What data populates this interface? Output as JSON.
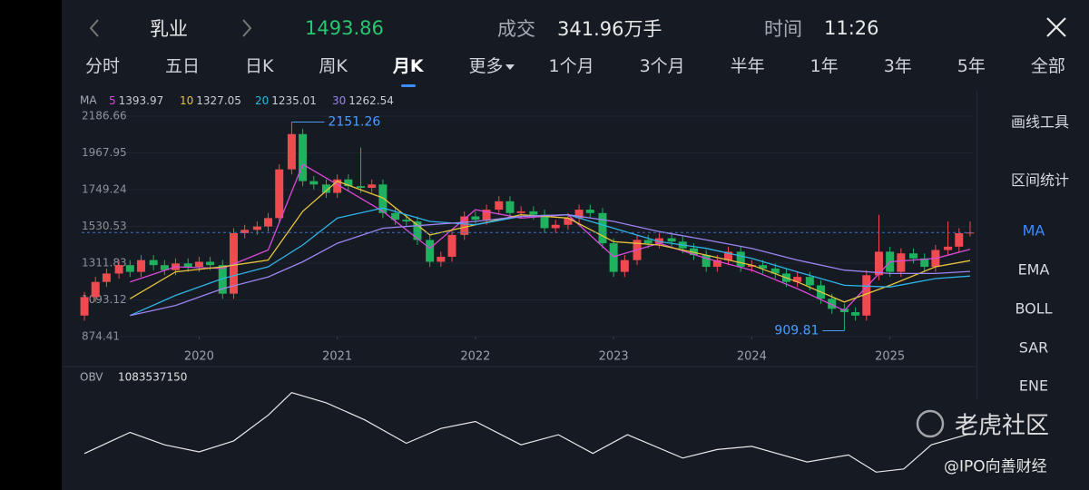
{
  "header": {
    "title": "乳业",
    "price": "1493.86",
    "volume_label": "成交",
    "volume": "341.96万手",
    "time_label": "时间",
    "time": "11:26"
  },
  "tabs": [
    "分时",
    "五日",
    "日K",
    "周K",
    "月K",
    "更多",
    "1个月",
    "3个月",
    "半年",
    "1年",
    "3年",
    "5年",
    "全部"
  ],
  "selected_tab": 4,
  "sidebar": {
    "tools": [
      "画线工具",
      "区间统计"
    ],
    "indicators": [
      "MA",
      "EMA",
      "BOLL",
      "SAR",
      "ENE"
    ],
    "selected": 0
  },
  "watermark": [
    "老虎社区",
    "@IPO向善财经"
  ],
  "chart_data": [
    {
      "type": "candlestick",
      "legend_title": "MA",
      "up_color": "#ef4a50",
      "down_color": "#20b15f",
      "xlim": [
        2019.15,
        2025.6
      ],
      "xticks": [
        2020,
        2021,
        2022,
        2023,
        2024,
        2025
      ],
      "ylim": [
        874.41,
        2186.66
      ],
      "yticks": [
        874.41,
        1093.12,
        1311.83,
        1530.53,
        1749.24,
        1967.95,
        2186.66
      ],
      "max_label": "2151.26",
      "min_label": "909.81",
      "x": [
        2019.17,
        2019.25,
        2019.33,
        2019.42,
        2019.5,
        2019.58,
        2019.67,
        2019.75,
        2019.83,
        2019.92,
        2020.0,
        2020.08,
        2020.17,
        2020.25,
        2020.33,
        2020.42,
        2020.5,
        2020.58,
        2020.67,
        2020.75,
        2020.83,
        2020.92,
        2021.0,
        2021.08,
        2021.17,
        2021.25,
        2021.33,
        2021.42,
        2021.5,
        2021.58,
        2021.67,
        2021.75,
        2021.83,
        2021.92,
        2022.0,
        2022.08,
        2022.17,
        2022.25,
        2022.33,
        2022.42,
        2022.5,
        2022.58,
        2022.67,
        2022.75,
        2022.83,
        2022.92,
        2023.0,
        2023.08,
        2023.17,
        2023.25,
        2023.33,
        2023.42,
        2023.5,
        2023.58,
        2023.67,
        2023.75,
        2023.83,
        2023.92,
        2024.0,
        2024.08,
        2024.17,
        2024.25,
        2024.33,
        2024.42,
        2024.5,
        2024.58,
        2024.67,
        2024.75,
        2024.83,
        2024.92,
        2025.0,
        2025.08,
        2025.17,
        2025.25,
        2025.33,
        2025.42,
        2025.5,
        2025.58
      ],
      "open": [
        1000,
        1110,
        1200,
        1250,
        1300,
        1260,
        1330,
        1300,
        1270,
        1310,
        1290,
        1320,
        1300,
        1130,
        1490,
        1510,
        1530,
        1580,
        1870,
        2080,
        1800,
        1780,
        1730,
        1810,
        1770,
        1760,
        1780,
        1610,
        1570,
        1560,
        1450,
        1320,
        1350,
        1480,
        1590,
        1570,
        1630,
        1680,
        1610,
        1620,
        1600,
        1520,
        1540,
        1580,
        1630,
        1610,
        1430,
        1260,
        1330,
        1450,
        1430,
        1460,
        1440,
        1400,
        1360,
        1290,
        1330,
        1380,
        1290,
        1300,
        1280,
        1250,
        1200,
        1230,
        1180,
        1100,
        1040,
        1020,
        1000,
        1240,
        1380,
        1260,
        1370,
        1340,
        1290,
        1390,
        1410,
        1490
      ],
      "high": [
        1140,
        1230,
        1280,
        1330,
        1330,
        1360,
        1360,
        1330,
        1340,
        1340,
        1350,
        1350,
        1330,
        1520,
        1540,
        1560,
        1610,
        1900,
        2151.26,
        2110,
        1830,
        1810,
        1840,
        1840,
        2000,
        1810,
        1810,
        1640,
        1600,
        1590,
        1480,
        1380,
        1510,
        1620,
        1620,
        1660,
        1710,
        1710,
        1650,
        1650,
        1630,
        1570,
        1610,
        1660,
        1660,
        1640,
        1460,
        1360,
        1480,
        1480,
        1490,
        1490,
        1470,
        1430,
        1390,
        1360,
        1410,
        1410,
        1330,
        1330,
        1310,
        1280,
        1260,
        1260,
        1210,
        1130,
        1070,
        1050,
        1270,
        1600,
        1410,
        1400,
        1400,
        1370,
        1420,
        1560,
        1520,
        1560
      ],
      "low": [
        970,
        1080,
        1170,
        1220,
        1230,
        1230,
        1270,
        1240,
        1240,
        1260,
        1260,
        1270,
        1100,
        1100,
        1460,
        1480,
        1500,
        1550,
        1840,
        1770,
        1750,
        1700,
        1700,
        1740,
        1730,
        1730,
        1580,
        1540,
        1530,
        1420,
        1290,
        1290,
        1320,
        1450,
        1540,
        1540,
        1600,
        1580,
        1580,
        1570,
        1490,
        1490,
        1510,
        1550,
        1580,
        1400,
        1230,
        1230,
        1300,
        1400,
        1400,
        1410,
        1370,
        1330,
        1260,
        1260,
        1300,
        1260,
        1260,
        1250,
        1220,
        1170,
        1170,
        1150,
        1070,
        1010,
        909.81,
        970,
        970,
        1210,
        1230,
        1230,
        1310,
        1260,
        1260,
        1360,
        1380,
        1470
      ],
      "close": [
        1110,
        1200,
        1250,
        1300,
        1260,
        1330,
        1300,
        1270,
        1310,
        1290,
        1320,
        1300,
        1130,
        1490,
        1510,
        1530,
        1580,
        1870,
        2080,
        1800,
        1780,
        1730,
        1810,
        1770,
        1760,
        1780,
        1610,
        1570,
        1560,
        1450,
        1320,
        1350,
        1480,
        1590,
        1570,
        1630,
        1680,
        1610,
        1620,
        1600,
        1520,
        1540,
        1580,
        1630,
        1610,
        1430,
        1260,
        1330,
        1450,
        1430,
        1460,
        1440,
        1400,
        1360,
        1290,
        1330,
        1380,
        1290,
        1300,
        1280,
        1250,
        1200,
        1230,
        1180,
        1100,
        1040,
        1020,
        1000,
        1240,
        1380,
        1260,
        1370,
        1340,
        1290,
        1390,
        1410,
        1490,
        1493.86
      ],
      "series": [
        {
          "name": "5",
          "color": "#d84ad8",
          "x": [
            2019.5,
            2019.83,
            2020.17,
            2020.5,
            2020.75,
            2021.0,
            2021.33,
            2021.67,
            2022.0,
            2022.33,
            2022.67,
            2023.0,
            2023.33,
            2023.67,
            2024.0,
            2024.33,
            2024.67,
            2025.0,
            2025.33,
            2025.58
          ],
          "values": [
            1200,
            1290,
            1280,
            1390,
            1900,
            1780,
            1620,
            1400,
            1630,
            1580,
            1600,
            1350,
            1430,
            1340,
            1270,
            1160,
            1030,
            1320,
            1340,
            1393.97
          ]
        },
        {
          "name": "10",
          "color": "#e6c43c",
          "x": [
            2019.5,
            2019.83,
            2020.17,
            2020.5,
            2020.75,
            2021.0,
            2021.33,
            2021.67,
            2022.0,
            2022.33,
            2022.67,
            2023.0,
            2023.33,
            2023.67,
            2024.0,
            2024.33,
            2024.67,
            2025.0,
            2025.33,
            2025.58
          ],
          "values": [
            1100,
            1260,
            1290,
            1330,
            1620,
            1800,
            1700,
            1480,
            1540,
            1600,
            1580,
            1440,
            1420,
            1360,
            1300,
            1200,
            1080,
            1180,
            1290,
            1327.05
          ]
        },
        {
          "name": "20",
          "color": "#2fb4e8",
          "x": [
            2019.5,
            2019.83,
            2020.17,
            2020.5,
            2020.75,
            2021.0,
            2021.33,
            2021.67,
            2022.0,
            2022.33,
            2022.67,
            2023.0,
            2023.33,
            2023.67,
            2024.0,
            2024.33,
            2024.67,
            2025.0,
            2025.33,
            2025.58
          ],
          "values": [
            1000,
            1120,
            1220,
            1290,
            1420,
            1580,
            1640,
            1560,
            1540,
            1590,
            1600,
            1520,
            1440,
            1400,
            1340,
            1260,
            1180,
            1170,
            1220,
            1235.01
          ]
        },
        {
          "name": "30",
          "color": "#9c84f2",
          "x": [
            2019.5,
            2019.83,
            2020.17,
            2020.5,
            2020.75,
            2021.0,
            2021.33,
            2021.67,
            2022.0,
            2022.33,
            2022.67,
            2023.0,
            2023.33,
            2023.67,
            2024.0,
            2024.33,
            2024.67,
            2025.0,
            2025.33,
            2025.58
          ],
          "values": [
            1000,
            1060,
            1160,
            1230,
            1320,
            1430,
            1520,
            1540,
            1560,
            1590,
            1600,
            1560,
            1500,
            1450,
            1400,
            1330,
            1270,
            1250,
            1250,
            1262.54
          ]
        }
      ]
    },
    {
      "type": "line",
      "title": "OBV",
      "color": "#e8e8e8",
      "xlim": [
        2019.15,
        2025.6
      ],
      "ylim": [
        500000000,
        1700000000
      ],
      "x": [
        2019.17,
        2019.5,
        2019.75,
        2020.0,
        2020.25,
        2020.5,
        2020.67,
        2020.92,
        2021.2,
        2021.5,
        2021.75,
        2022.0,
        2022.33,
        2022.6,
        2022.85,
        2023.1,
        2023.5,
        2023.75,
        2024.0,
        2024.4,
        2024.7,
        2024.9,
        2025.1,
        2025.3,
        2025.58
      ],
      "values": [
        828000000,
        1100000000,
        940000000,
        850000000,
        990000000,
        1320000000,
        1610000000,
        1480000000,
        1260000000,
        960000000,
        1150000000,
        1240000000,
        940000000,
        1070000000,
        830000000,
        1070000000,
        770000000,
        880000000,
        920000000,
        720000000,
        810000000,
        590000000,
        630000000,
        940000000,
        1083537150
      ]
    }
  ]
}
